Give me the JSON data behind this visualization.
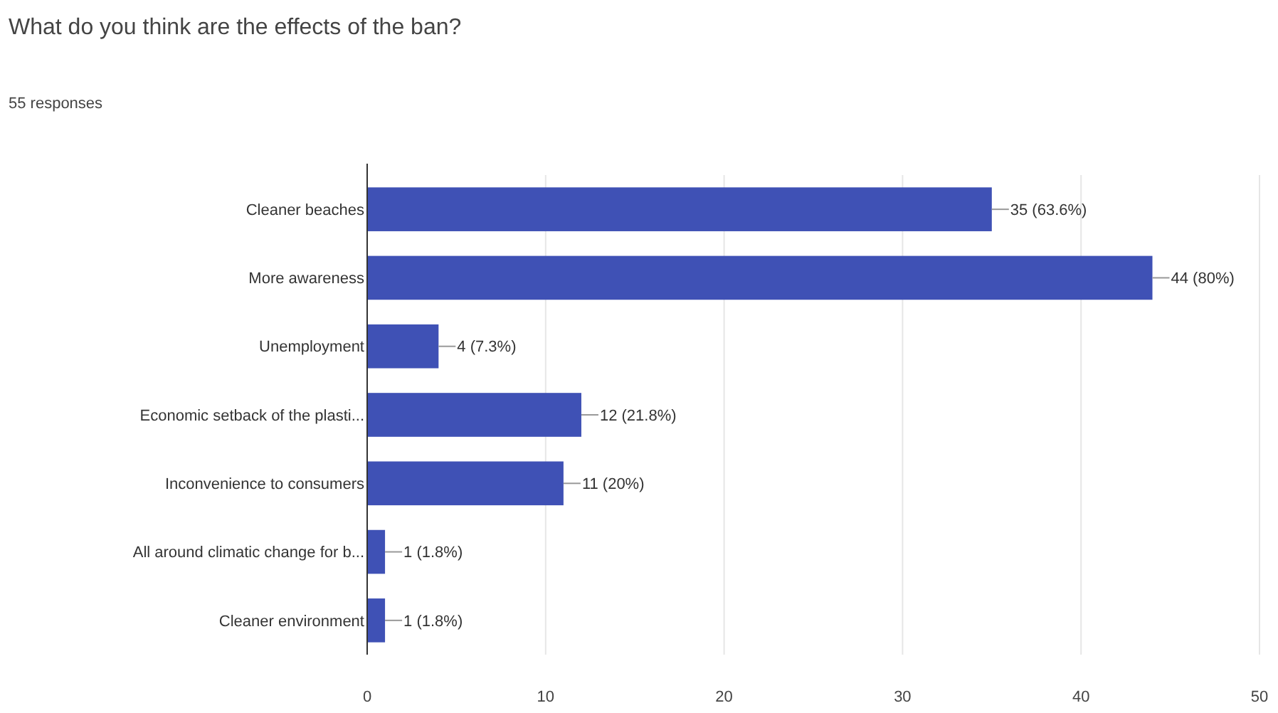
{
  "chart_data": {
    "type": "bar",
    "orientation": "horizontal",
    "title": "What do you think are the effects of the ban?",
    "subtitle": "55 responses",
    "categories": [
      "Cleaner beaches",
      "More awareness",
      "Unemployment",
      "Economic setback of the plasti...",
      "Inconvenience to consumers",
      "All around climatic change for b...",
      "Cleaner environment"
    ],
    "values": [
      35,
      44,
      4,
      12,
      11,
      1,
      1
    ],
    "value_labels": [
      "35 (63.6%)",
      "44 (80%)",
      "4 (7.3%)",
      "12 (21.8%)",
      "11 (20%)",
      "1 (1.8%)",
      "1 (1.8%)"
    ],
    "color": "#3f51b5",
    "xlim": [
      0,
      50
    ],
    "xticks": [
      0,
      10,
      20,
      30,
      40,
      50
    ],
    "grid": "x"
  }
}
